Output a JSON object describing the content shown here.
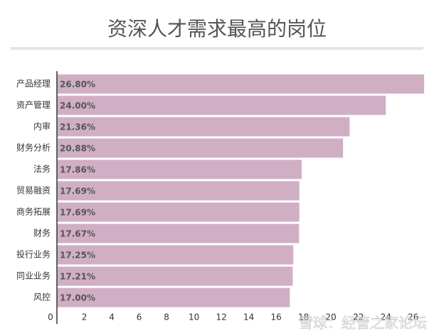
{
  "chart_data": {
    "type": "bar",
    "orientation": "horizontal",
    "title": "资深人才需求最高的岗位",
    "categories": [
      "产品经理",
      "资产管理",
      "内审",
      "财务分析",
      "法务",
      "贸易融资",
      "商务拓展",
      "财务",
      "投行业务",
      "同业业务",
      "风控"
    ],
    "values": [
      26.8,
      24.0,
      21.36,
      20.88,
      17.86,
      17.69,
      17.69,
      17.67,
      17.25,
      17.21,
      17.0
    ],
    "value_labels": [
      "26.80%",
      "24.00%",
      "21.36%",
      "20.88%",
      "17.86%",
      "17.69%",
      "17.69%",
      "17.67%",
      "17.25%",
      "17.21%",
      "17.00%"
    ],
    "color": "#d0afc5",
    "xlim": [
      0,
      27
    ],
    "xticks": [
      0,
      2,
      4,
      6,
      8,
      10,
      12,
      14,
      16,
      18,
      20,
      22,
      24,
      26
    ],
    "watermark": "雪球：经管之家论坛"
  }
}
